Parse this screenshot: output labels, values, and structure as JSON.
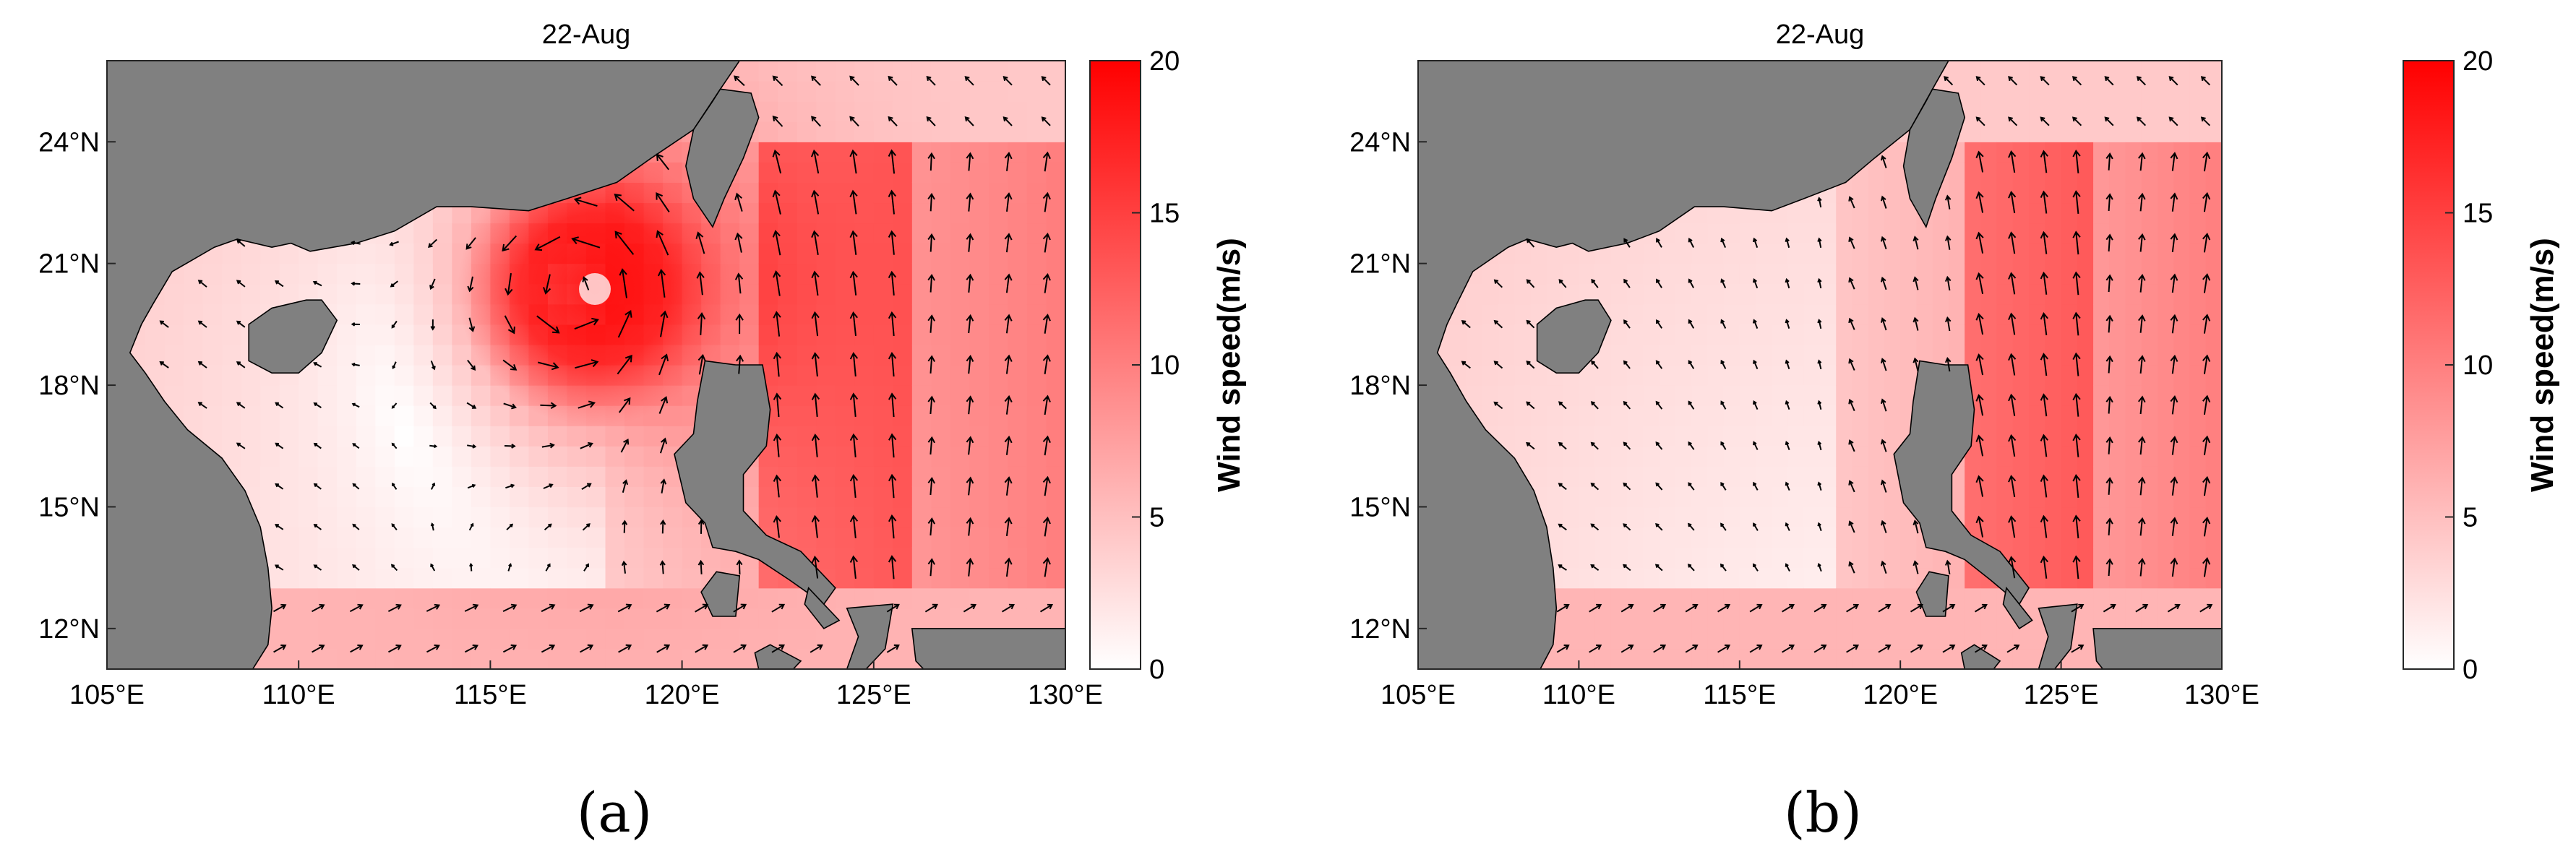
{
  "figure": {
    "panels": [
      {
        "id": "a",
        "title": "22-Aug",
        "caption": "(a)",
        "colorbar": {
          "label": "Wind speed(m/s)",
          "min": 0,
          "max": 20,
          "ticks": [
            "0",
            "5",
            "10",
            "15",
            "20"
          ],
          "colors": [
            "#ffffff",
            "#ff0000"
          ]
        },
        "x_ticks": [
          "105°E",
          "110°E",
          "115°E",
          "120°E",
          "125°E",
          "130°E"
        ],
        "y_ticks": [
          "24°N",
          "21°N",
          "18°N",
          "15°N",
          "12°N"
        ],
        "typhoon_center": {
          "lon": 117.3,
          "lat": 20.4,
          "max_speed": 19
        }
      },
      {
        "id": "b",
        "title": "22-Aug",
        "caption": "(b)",
        "colorbar": {
          "label": "Wind speed(m/s)",
          "min": 0,
          "max": 20,
          "ticks": [
            "0",
            "5",
            "10",
            "15",
            "20"
          ],
          "colors": [
            "#ffffff",
            "#ff0000"
          ]
        },
        "x_ticks": [
          "105°E",
          "110°E",
          "115°E",
          "120°E",
          "125°E",
          "130°E"
        ],
        "y_ticks": [
          "24°N",
          "21°N",
          "18°N",
          "15°N",
          "12°N"
        ]
      }
    ],
    "map": {
      "lon_range": [
        105,
        130
      ],
      "lat_range": [
        11,
        26
      ],
      "land_color": "#808080"
    }
  }
}
